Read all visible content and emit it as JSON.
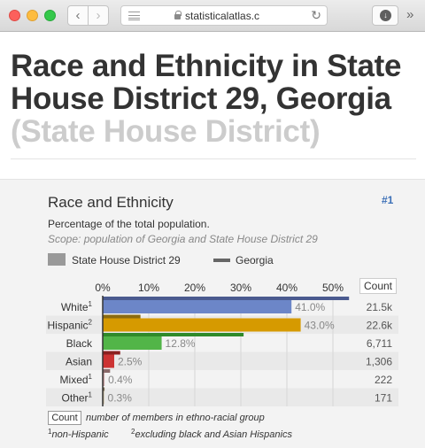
{
  "browser": {
    "url": "statisticalatlas.c",
    "back_glyph": "‹",
    "forward_glyph": "›",
    "reload_glyph": "↻",
    "download_glyph": "↓",
    "more_glyph": "»"
  },
  "page": {
    "title": "Race and Ethnicity in State House District 29, Georgia",
    "subtitle": "(State House District)"
  },
  "panel": {
    "title": "Race and Ethnicity",
    "number": "#1",
    "description": "Percentage of the total population.",
    "scope": "Scope: population of Georgia and State House District 29",
    "legend_district": "State House District 29",
    "legend_state": "Georgia",
    "count_header": "Count",
    "footer_count_label": "Count",
    "footer_count_desc": "number of members in ethno-racial group",
    "footnote1_mark": "1",
    "footnote1_text": "non-Hispanic",
    "footnote2_mark": "2",
    "footnote2_text": "excluding black and Asian Hispanics"
  },
  "chart_data": {
    "type": "bar",
    "ticks": [
      "0%",
      "10%",
      "20%",
      "30%",
      "40%",
      "50%"
    ],
    "xlim": [
      0,
      55
    ],
    "categories": [
      "White",
      "Hispanic",
      "Black",
      "Asian",
      "Mixed",
      "Other"
    ],
    "category_marks": [
      "1",
      "2",
      "",
      "",
      "1",
      "1"
    ],
    "series": [
      {
        "name": "State House District 29",
        "values": [
          41.0,
          43.0,
          12.8,
          2.5,
          0.4,
          0.3
        ],
        "labels": [
          "41.0%",
          "43.0%",
          "12.8%",
          "2.5%",
          "0.4%",
          "0.3%"
        ]
      },
      {
        "name": "Georgia",
        "values": [
          53.5,
          8.2,
          30.6,
          3.8,
          1.6,
          0.4
        ]
      }
    ],
    "counts": [
      "21.5k",
      "22.6k",
      "6,711",
      "1,306",
      "222",
      "171"
    ],
    "colors": [
      "#6c86c8",
      "#d69a00",
      "#52b548",
      "#cc3333",
      "#c8a0a0",
      "#c0b090"
    ],
    "state_colors": [
      "#4a5a8f",
      "#8b6b10",
      "#2f8a2a",
      "#8b2020",
      "#8a6a6a",
      "#7a6a50"
    ]
  }
}
